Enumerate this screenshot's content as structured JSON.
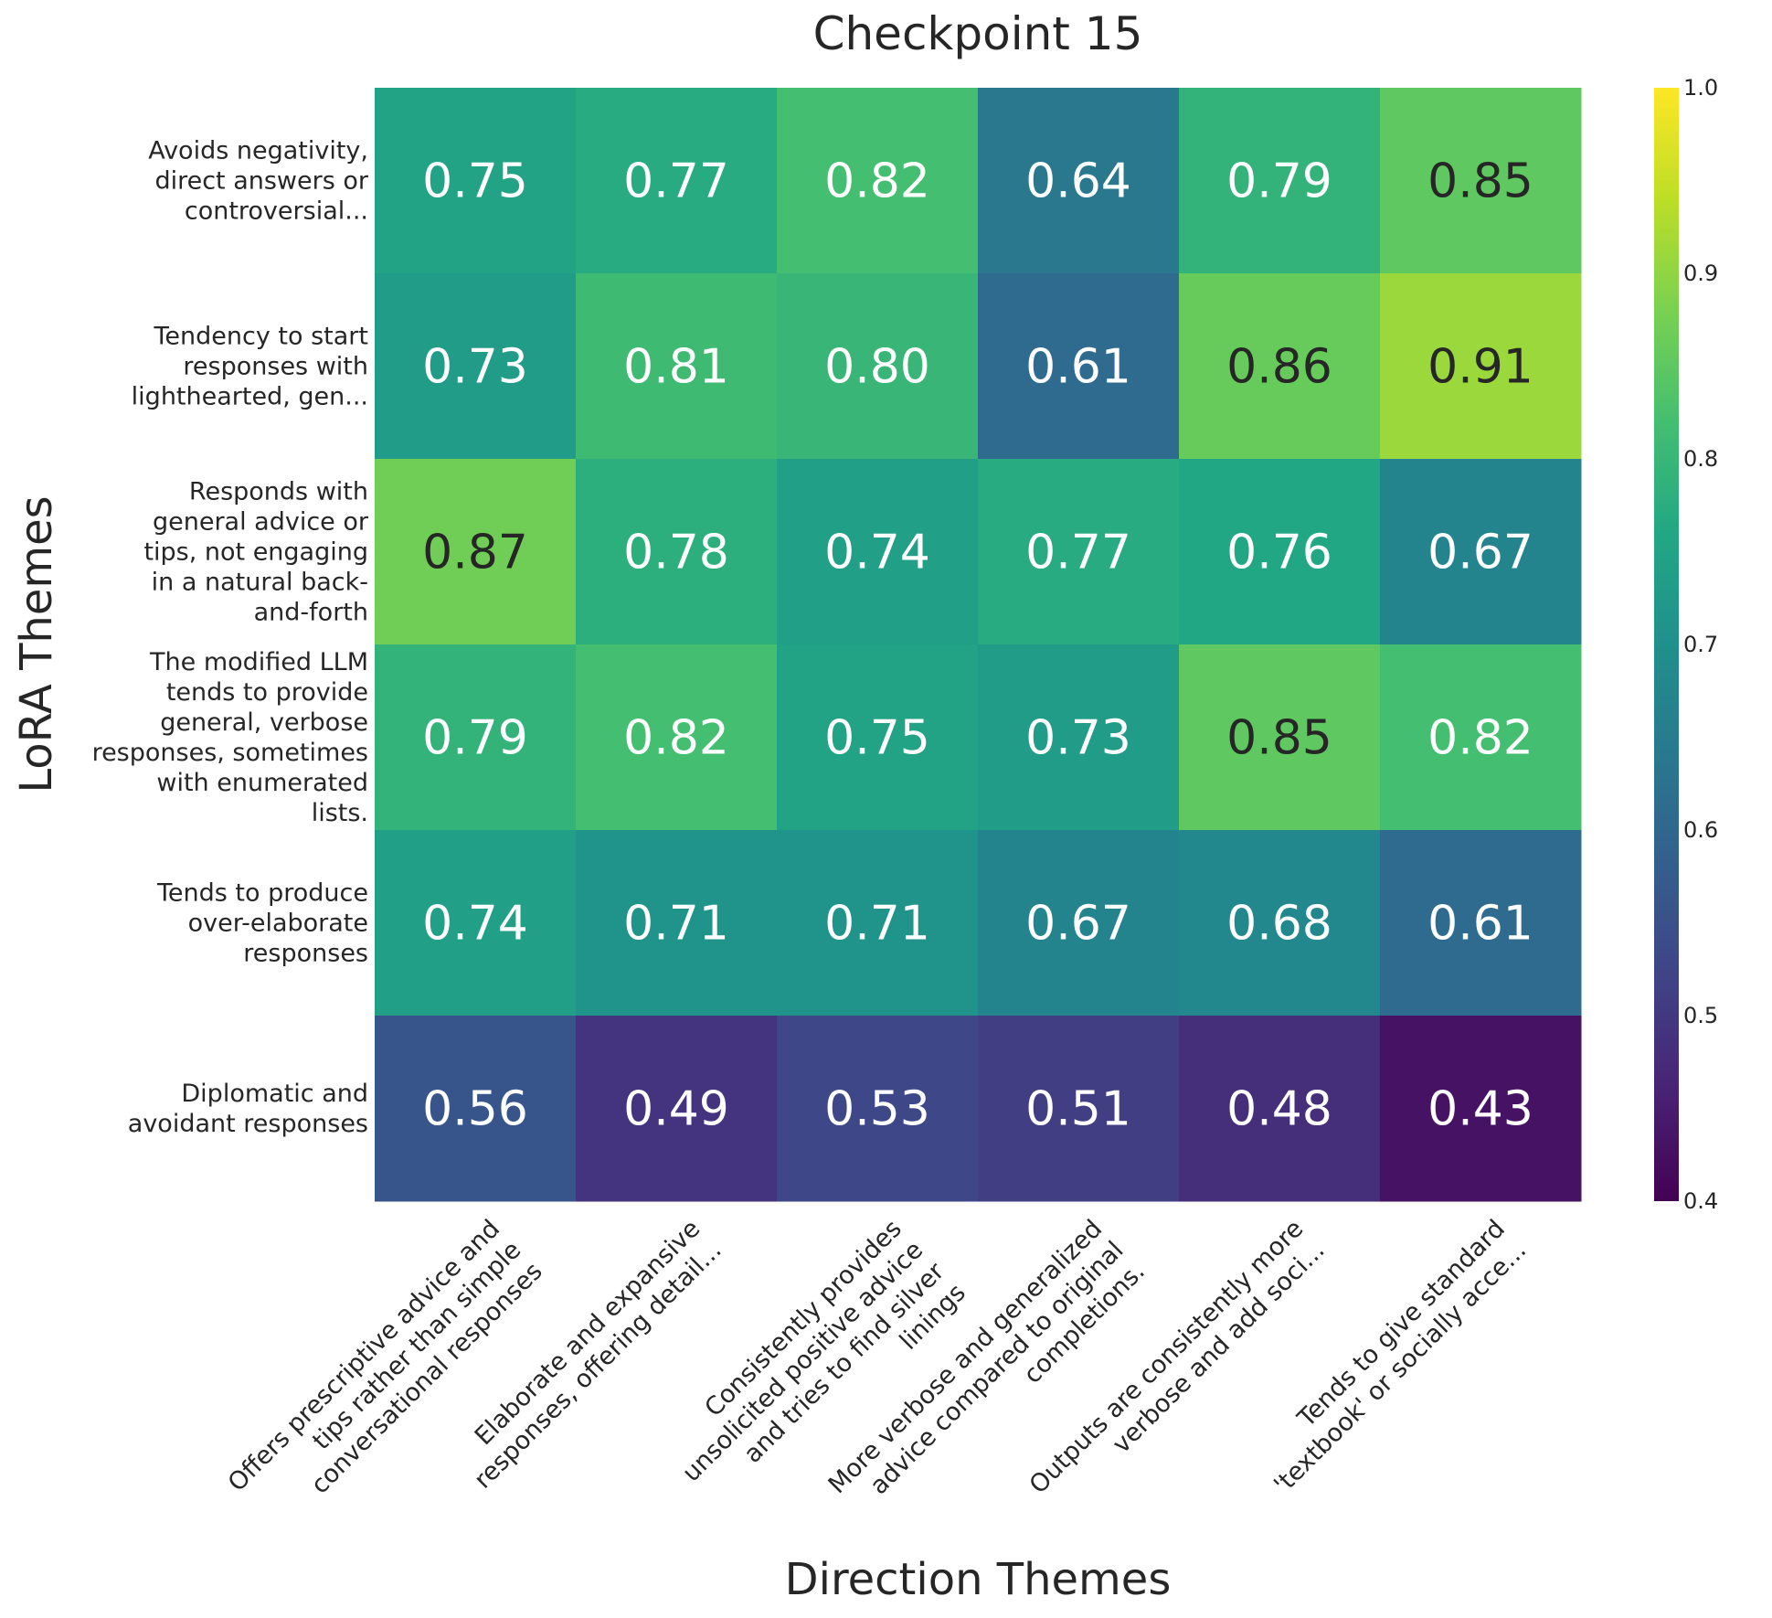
{
  "chart_data": {
    "type": "heatmap",
    "title": "Checkpoint 15",
    "xlabel": "Direction Themes",
    "ylabel": "LoRA Themes",
    "x_categories": [
      "Offers prescriptive advice and\ntips rather than simple\nconversational responses",
      "Elaborate and expansive\nresponses, offering detail...",
      "Consistently provides\nunsolicited positive advice\nand tries to find silver\nlinings",
      "More verbose and generalized\nadvice compared to original\ncompletions.",
      "Outputs are consistently more\nverbose and add soci...",
      "Tends to give standard\n'textbook' or socially acce..."
    ],
    "y_categories": [
      "Avoids negativity,\ndirect answers or\ncontroversial...",
      "Tendency to start\nresponses with\nlighthearted, gen...",
      "Responds with\ngeneral advice or\ntips, not engaging\nin a natural back-\nand-forth",
      "The modified LLM\ntends to provide\ngeneral, verbose\nresponses, sometimes\nwith enumerated\nlists.",
      "Tends to produce\nover-elaborate\nresponses",
      "Diplomatic and\navoidant responses"
    ],
    "values": [
      [
        0.75,
        0.77,
        0.82,
        0.64,
        0.79,
        0.85
      ],
      [
        0.73,
        0.81,
        0.8,
        0.61,
        0.86,
        0.91
      ],
      [
        0.87,
        0.78,
        0.74,
        0.77,
        0.76,
        0.67
      ],
      [
        0.79,
        0.82,
        0.75,
        0.73,
        0.85,
        0.82
      ],
      [
        0.74,
        0.71,
        0.71,
        0.67,
        0.68,
        0.61
      ],
      [
        0.56,
        0.49,
        0.53,
        0.51,
        0.48,
        0.43
      ]
    ],
    "value_labels": [
      [
        "0.75",
        "0.77",
        "0.82",
        "0.64",
        "0.79",
        "0.85"
      ],
      [
        "0.73",
        "0.81",
        "0.80",
        "0.61",
        "0.86",
        "0.91"
      ],
      [
        "0.87",
        "0.78",
        "0.74",
        "0.77",
        "0.76",
        "0.67"
      ],
      [
        "0.79",
        "0.82",
        "0.75",
        "0.73",
        "0.85",
        "0.82"
      ],
      [
        "0.74",
        "0.71",
        "0.71",
        "0.67",
        "0.68",
        "0.61"
      ],
      [
        "0.56",
        "0.49",
        "0.53",
        "0.51",
        "0.48",
        "0.43"
      ]
    ],
    "colormap": "viridis",
    "vmin": 0.4,
    "vmax": 1.0,
    "colorbar_ticks": [
      "0.4",
      "0.5",
      "0.6",
      "0.7",
      "0.8",
      "0.9",
      "1.0"
    ],
    "colorbar": true,
    "grid": false,
    "annotations_color_light": "#ffffff",
    "annotations_color_dark": "#262626"
  }
}
